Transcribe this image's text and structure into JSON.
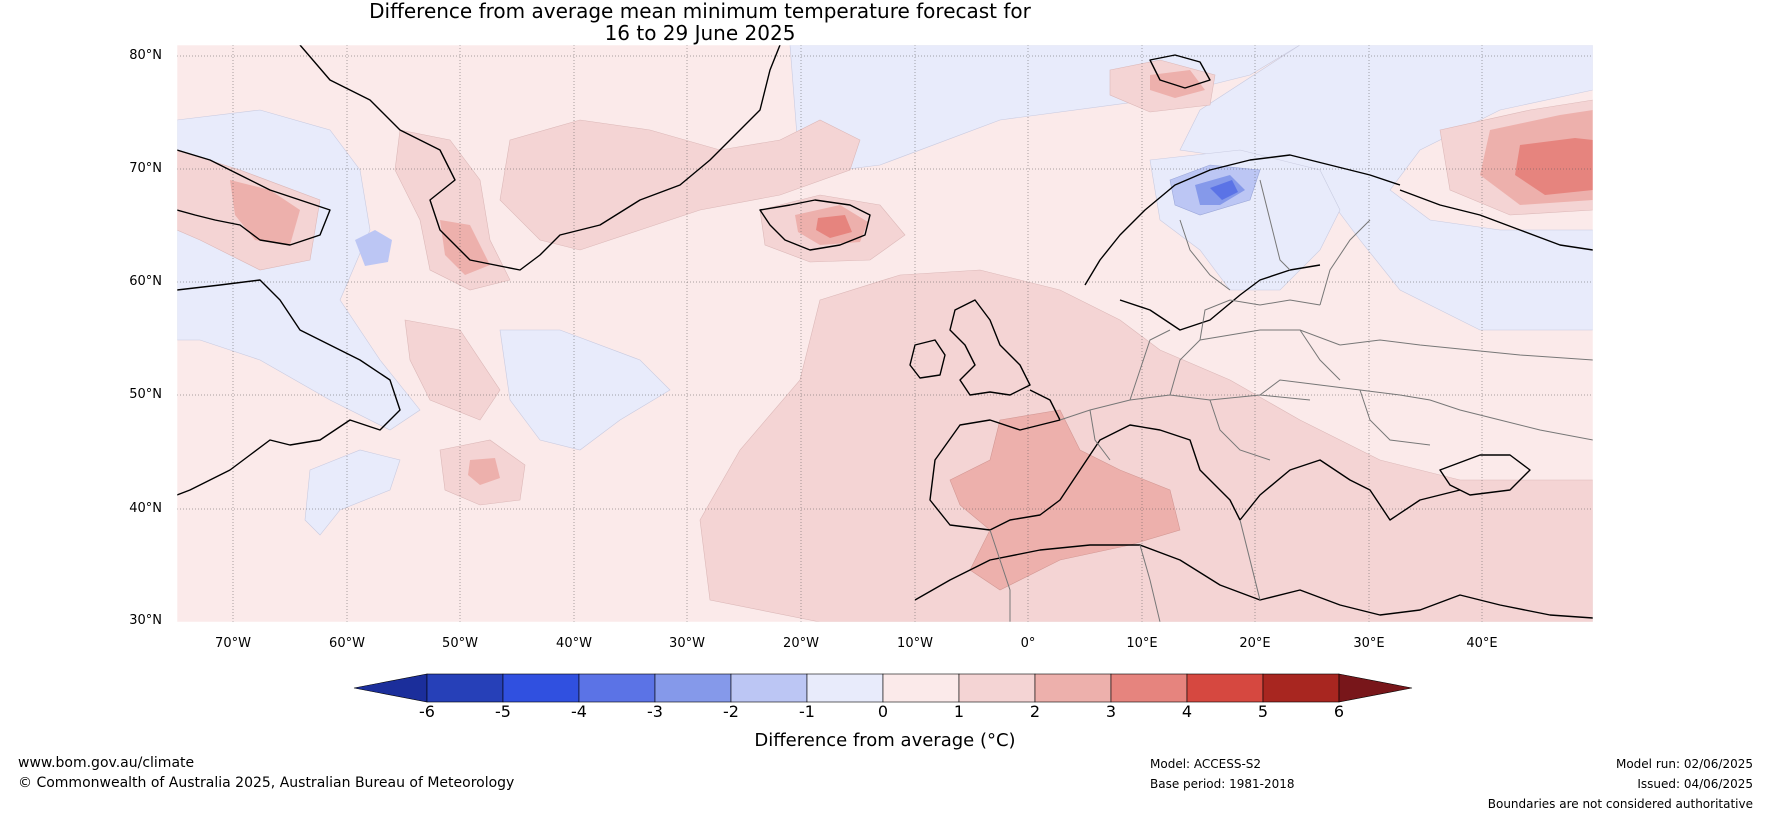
{
  "title_line1": "Difference from average mean minimum temperature forecast for",
  "title_line2": "16 to 29 June 2025",
  "lat_labels": [
    "80°N",
    "70°N",
    "60°N",
    "50°N",
    "40°N",
    "30°N"
  ],
  "lon_labels": [
    "70°W",
    "60°W",
    "50°W",
    "40°W",
    "30°W",
    "20°W",
    "10°W",
    "0°",
    "10°E",
    "20°E",
    "30°E",
    "40°E"
  ],
  "colorbar": {
    "ticks": [
      "-6",
      "-5",
      "-4",
      "-3",
      "-2",
      "-1",
      "0",
      "1",
      "2",
      "3",
      "4",
      "5",
      "6"
    ],
    "colors": [
      "#1b2e9b",
      "#2640b8",
      "#3050e0",
      "#5b73e6",
      "#8599ea",
      "#bcc6f4",
      "#e8ebfb",
      "#fbeaea",
      "#f4d4d4",
      "#edb0ac",
      "#e6847e",
      "#d64840",
      "#a82620",
      "#78161a"
    ],
    "label": "Difference from average (°C)"
  },
  "map_colors": {
    "neg1": "#e8ebfb",
    "neg2": "#bcc6f4",
    "neg3": "#8599ea",
    "neg4": "#5b73e6",
    "pos1": "#fbeaea",
    "pos2": "#f4d4d4",
    "pos3": "#edb0ac",
    "pos4": "#e6847e",
    "pos5": "#d64840"
  },
  "footer": {
    "url": "www.bom.gov.au/climate",
    "copyright": "© Commonwealth of Australia 2025, Australian Bureau of Meteorology",
    "model": "Model: ACCESS-S2",
    "base_period": "Base period: 1981-2018",
    "model_run": "Model run: 02/06/2025",
    "issued": "Issued: 04/06/2025",
    "disclaimer": "Boundaries are not considered authoritative"
  }
}
